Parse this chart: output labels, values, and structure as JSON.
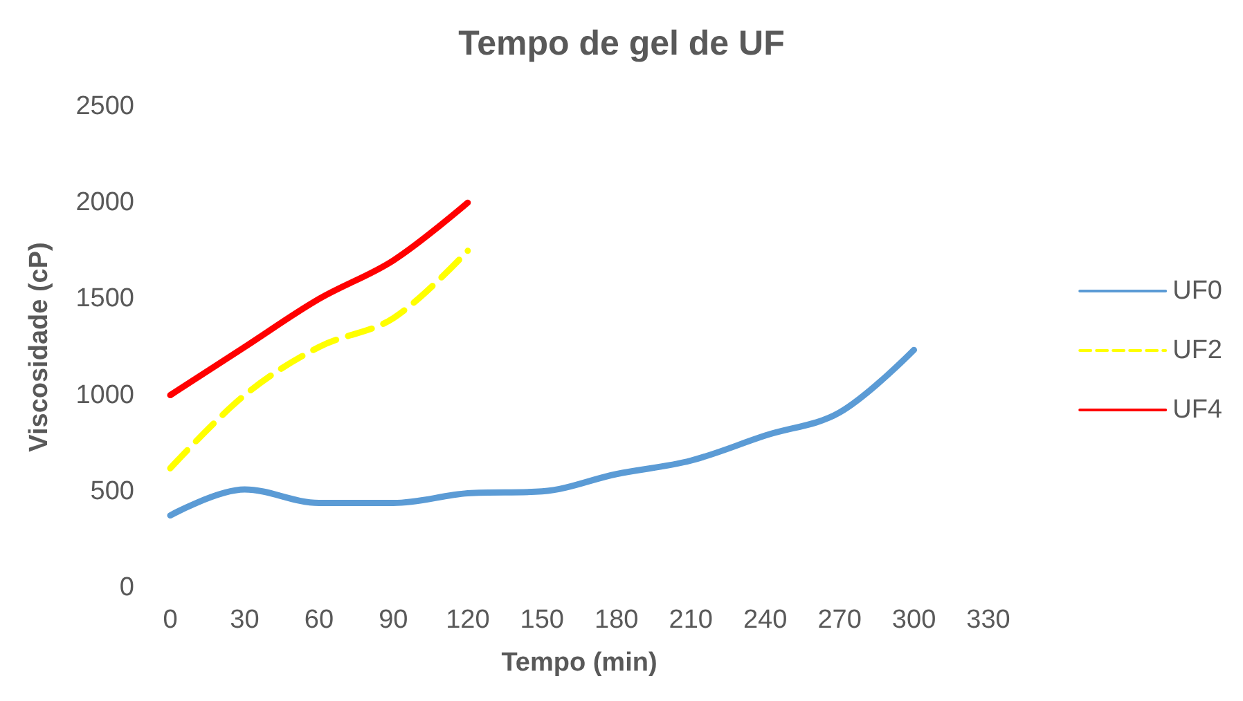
{
  "chart_data": {
    "type": "line",
    "title": "Tempo de gel de UF",
    "xlabel": "Tempo (min)",
    "ylabel": "Viscosidade (cP)",
    "x": [
      0,
      30,
      60,
      90,
      120,
      150,
      180,
      210,
      240,
      270,
      300
    ],
    "series": [
      {
        "name": "UF0",
        "color": "#5b9bd5",
        "line_style": "solid",
        "values": [
          375,
          510,
          440,
          440,
          490,
          500,
          590,
          660,
          790,
          910,
          1235
        ]
      },
      {
        "name": "UF2",
        "color": "#ffff00",
        "line_style": "dashed",
        "x": [
          0,
          30,
          60,
          90,
          120
        ],
        "values": [
          620,
          1000,
          1250,
          1400,
          1750
        ]
      },
      {
        "name": "UF4",
        "color": "#ff0000",
        "line_style": "solid",
        "x": [
          0,
          30,
          60,
          90,
          120
        ],
        "values": [
          1000,
          1250,
          1500,
          1700,
          2000
        ]
      }
    ],
    "xlim": [
      0,
      330
    ],
    "xticks": [
      0,
      30,
      60,
      90,
      120,
      150,
      180,
      210,
      240,
      270,
      300,
      330
    ],
    "ylim": [
      0,
      2500
    ],
    "yticks": [
      0,
      500,
      1000,
      1500,
      2000,
      2500
    ],
    "grid": false,
    "legend": "right",
    "marker": "none"
  }
}
